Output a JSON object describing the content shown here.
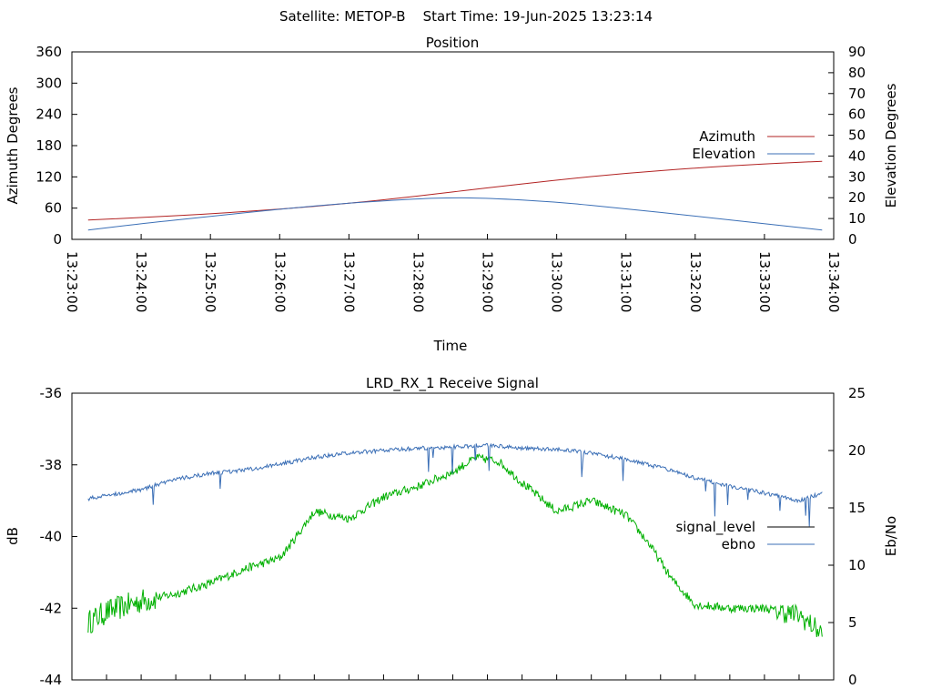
{
  "header": "Satellite: METOP-B    Start Time: 19-Jun-2025 13:23:14",
  "chart_data": [
    {
      "type": "line",
      "title": "Position",
      "xlabel": "Time",
      "ylabel": "Azimuth Degrees",
      "y2label": "Elevation Degrees",
      "xlim": [
        "13:23:00",
        "13:34:00"
      ],
      "ylim": [
        0,
        360
      ],
      "y2lim": [
        0,
        90
      ],
      "x_ticks": [
        "13:23:00",
        "13:24:00",
        "13:25:00",
        "13:26:00",
        "13:27:00",
        "13:28:00",
        "13:29:00",
        "13:30:00",
        "13:31:00",
        "13:32:00",
        "13:33:00",
        "13:34:00"
      ],
      "y_ticks": [
        "0",
        "60",
        "120",
        "180",
        "240",
        "300",
        "360"
      ],
      "y2_ticks": [
        "0",
        "10",
        "20",
        "30",
        "40",
        "50",
        "60",
        "70",
        "80",
        "90"
      ],
      "legend_position": "right",
      "series": [
        {
          "name": "Azimuth",
          "axis": "left",
          "color": "#b22222",
          "x": [
            "13:23:14",
            "13:24:00",
            "13:25:00",
            "13:26:00",
            "13:27:00",
            "13:28:00",
            "13:29:00",
            "13:30:00",
            "13:31:00",
            "13:32:00",
            "13:33:00",
            "13:33:50"
          ],
          "y": [
            37,
            42,
            49,
            58,
            69,
            83,
            99,
            114,
            127,
            137,
            145,
            150
          ]
        },
        {
          "name": "Elevation",
          "axis": "right",
          "color": "#3b6fb6",
          "x": [
            "13:23:14",
            "13:24:00",
            "13:25:00",
            "13:26:00",
            "13:27:00",
            "13:28:00",
            "13:28:30",
            "13:29:00",
            "13:30:00",
            "13:31:00",
            "13:32:00",
            "13:33:00",
            "13:33:50"
          ],
          "y": [
            4.5,
            7.5,
            11,
            14.5,
            17.5,
            19.5,
            20,
            19.8,
            18,
            14.7,
            11.2,
            7.5,
            4.5
          ]
        }
      ]
    },
    {
      "type": "line",
      "title": "LRD_RX_1 Receive Signal",
      "ylabel": "dB",
      "y2label": "Eb/No",
      "ylim": [
        -44,
        -36
      ],
      "y2lim": [
        0,
        25
      ],
      "xlim": [
        "13:23:00",
        "13:34:00"
      ],
      "y_ticks": [
        "-44",
        "-42",
        "-40",
        "-38",
        "-36"
      ],
      "y2_ticks": [
        "0",
        "5",
        "10",
        "15",
        "20",
        "25"
      ],
      "legend_position": "right",
      "series": [
        {
          "name": "signal_level",
          "axis": "left",
          "color": "#00b000",
          "x": [
            "13:23:14",
            "13:23:30",
            "13:24:00",
            "13:24:30",
            "13:25:00",
            "13:25:30",
            "13:26:00",
            "13:26:10",
            "13:26:30",
            "13:27:00",
            "13:27:30",
            "13:28:00",
            "13:28:30",
            "13:28:50",
            "13:29:10",
            "13:29:30",
            "13:30:00",
            "13:30:30",
            "13:31:00",
            "13:31:20",
            "13:31:40",
            "13:32:00",
            "13:32:30",
            "13:33:00",
            "13:33:30",
            "13:33:50"
          ],
          "y": [
            -42.4,
            -42.1,
            -41.8,
            -41.6,
            -41.3,
            -40.9,
            -40.6,
            -40.2,
            -39.3,
            -39.5,
            -38.9,
            -38.6,
            -38.2,
            -37.8,
            -37.9,
            -38.5,
            -39.3,
            -39.0,
            -39.4,
            -40.2,
            -41.2,
            -41.9,
            -42.0,
            -42.0,
            -42.2,
            -42.7
          ]
        },
        {
          "name": "ebno",
          "axis": "right",
          "color": "#3b6fb6",
          "x": [
            "13:23:14",
            "13:24:00",
            "13:24:30",
            "13:25:00",
            "13:25:30",
            "13:26:00",
            "13:26:30",
            "13:27:00",
            "13:27:30",
            "13:28:00",
            "13:28:30",
            "13:29:00",
            "13:29:30",
            "13:30:00",
            "13:30:30",
            "13:31:00",
            "13:31:30",
            "13:32:00",
            "13:32:30",
            "13:33:00",
            "13:33:30",
            "13:33:50"
          ],
          "y": [
            15.8,
            16.6,
            17.5,
            18,
            18.3,
            18.8,
            19.4,
            19.8,
            20,
            20.2,
            20.3,
            20.5,
            20.2,
            20.1,
            19.8,
            19.2,
            18.5,
            17.6,
            16.9,
            16.3,
            15.6,
            16.3
          ]
        }
      ]
    }
  ]
}
